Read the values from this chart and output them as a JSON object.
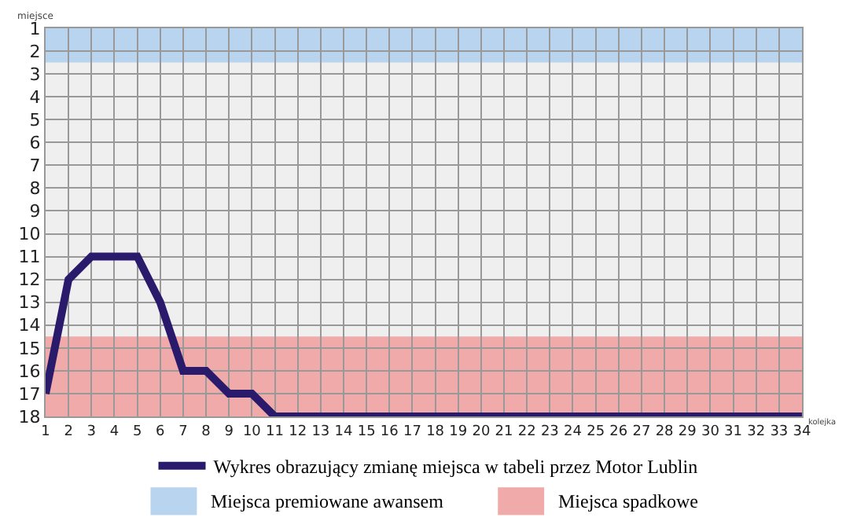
{
  "chart_data": {
    "type": "line",
    "xlabel": "kolejka",
    "ylabel": "miejsce",
    "x": [
      1,
      2,
      3,
      4,
      5,
      6,
      7,
      8,
      9,
      10,
      11,
      12,
      13,
      14,
      15,
      16,
      17,
      18,
      19,
      20,
      21,
      22,
      23,
      24,
      25,
      26,
      27,
      28,
      29,
      30,
      31,
      32,
      33,
      34
    ],
    "series": [
      {
        "name": "Wykres obrazujący zmianę miejsca w tabeli przez Motor Lublin",
        "color": "#2a1a6b",
        "values": [
          17,
          12,
          11,
          11,
          11,
          13,
          16,
          16,
          17,
          17,
          18,
          18,
          18,
          18,
          18,
          18,
          18,
          18,
          18,
          18,
          18,
          18,
          18,
          18,
          18,
          18,
          18,
          18,
          18,
          18,
          18,
          18,
          18,
          18
        ]
      }
    ],
    "xlim": [
      1,
      34
    ],
    "xticks": [
      1,
      2,
      3,
      4,
      5,
      6,
      7,
      8,
      9,
      10,
      11,
      12,
      13,
      14,
      15,
      16,
      17,
      18,
      19,
      20,
      21,
      22,
      23,
      24,
      25,
      26,
      27,
      28,
      29,
      30,
      31,
      32,
      33,
      34
    ],
    "ylim": [
      18,
      1
    ],
    "yticks": [
      1,
      2,
      3,
      4,
      5,
      6,
      7,
      8,
      9,
      10,
      11,
      12,
      13,
      14,
      15,
      16,
      17,
      18
    ],
    "bands": [
      {
        "axis": "y",
        "from": 1,
        "to": 2.5,
        "label": "Miejsca premiowane awansem",
        "color": "#b8d4ee"
      },
      {
        "axis": "y",
        "from": 14.5,
        "to": 18,
        "label": "Miejsca spadkowe",
        "color": "#f0aaaa"
      }
    ],
    "grid": true,
    "legend": "bottom",
    "marker": "none",
    "line_style": "solid"
  }
}
